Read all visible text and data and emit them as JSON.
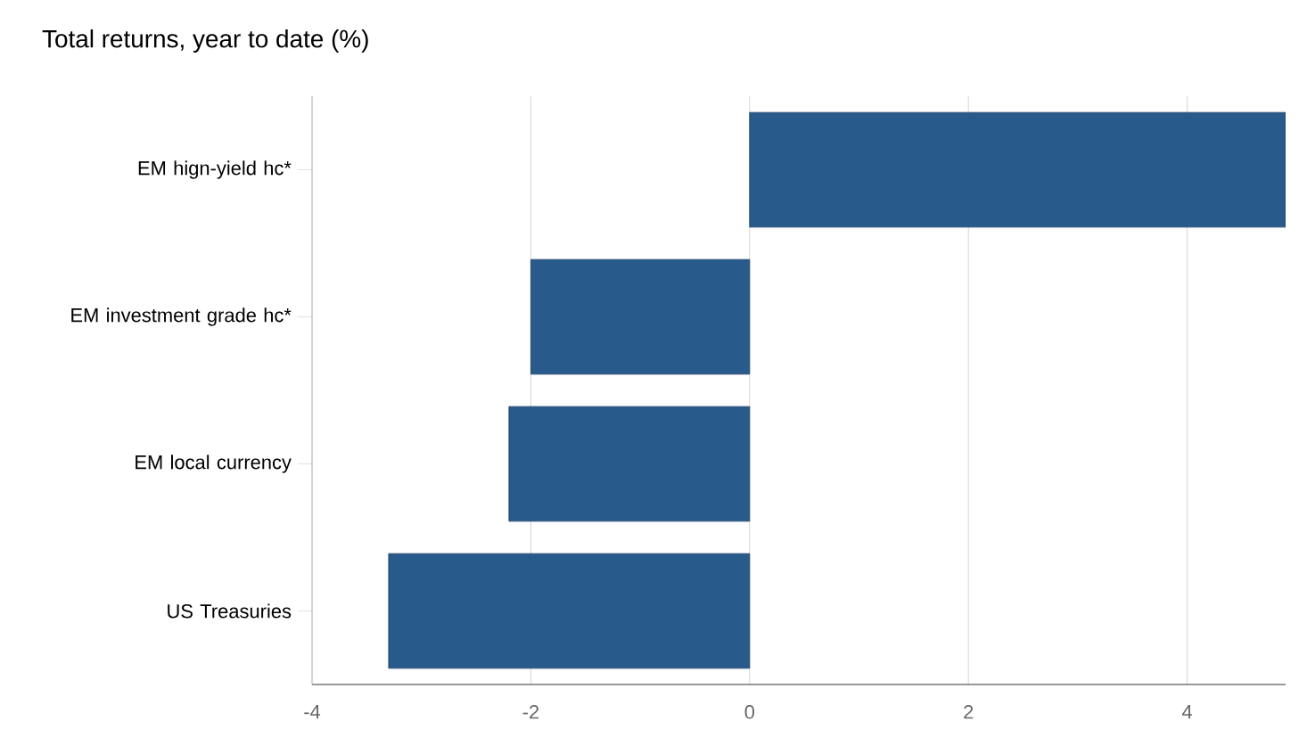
{
  "chart_data": {
    "type": "bar",
    "orientation": "horizontal",
    "title": "Total returns, year to date (%)",
    "categories": [
      "EM hign-yield hc*",
      "EM investment grade hc*",
      "EM local currency",
      "US Treasuries"
    ],
    "values": [
      4.9,
      -2.0,
      -2.2,
      -3.3
    ],
    "color": "#285a8c",
    "xlim": [
      -4,
      4.9
    ],
    "xticks": [
      -4,
      -2,
      0,
      2,
      4
    ],
    "grid": "x"
  }
}
